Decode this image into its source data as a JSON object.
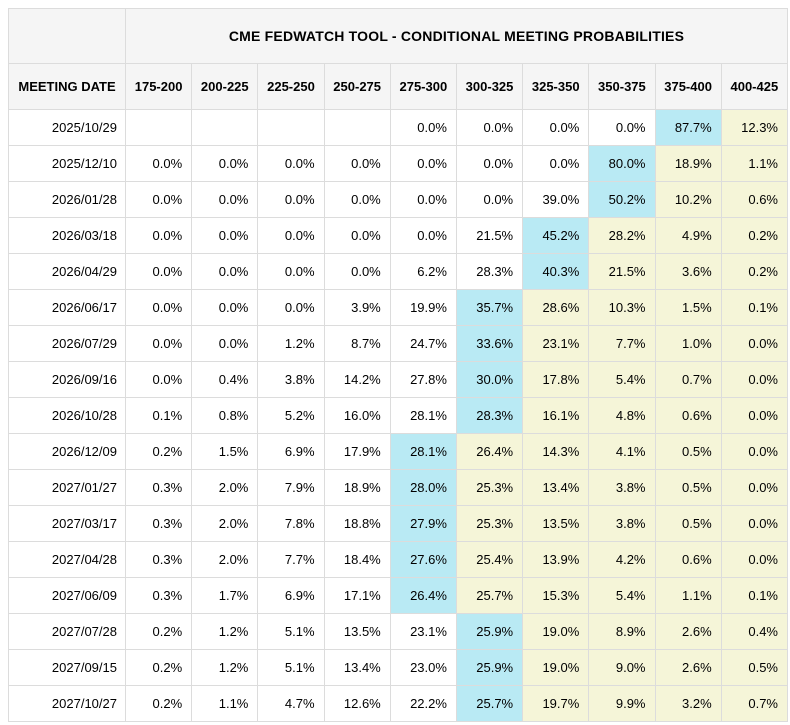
{
  "chart_data": {
    "type": "table",
    "title": "CME FEDWATCH TOOL - CONDITIONAL MEETING PROBABILITIES",
    "row_header": "MEETING DATE",
    "columns": [
      "175-200",
      "200-225",
      "225-250",
      "250-275",
      "275-300",
      "300-325",
      "325-350",
      "350-375",
      "375-400",
      "400-425"
    ],
    "rows": [
      {
        "date": "2025/10/29",
        "values": [
          "",
          "",
          "",
          "",
          "0.0%",
          "0.0%",
          "0.0%",
          "0.0%",
          "87.7%",
          "12.3%"
        ],
        "max_col_index": 8
      },
      {
        "date": "2025/12/10",
        "values": [
          "0.0%",
          "0.0%",
          "0.0%",
          "0.0%",
          "0.0%",
          "0.0%",
          "0.0%",
          "80.0%",
          "18.9%",
          "1.1%"
        ],
        "max_col_index": 7
      },
      {
        "date": "2026/01/28",
        "values": [
          "0.0%",
          "0.0%",
          "0.0%",
          "0.0%",
          "0.0%",
          "0.0%",
          "39.0%",
          "50.2%",
          "10.2%",
          "0.6%"
        ],
        "max_col_index": 7
      },
      {
        "date": "2026/03/18",
        "values": [
          "0.0%",
          "0.0%",
          "0.0%",
          "0.0%",
          "0.0%",
          "21.5%",
          "45.2%",
          "28.2%",
          "4.9%",
          "0.2%"
        ],
        "max_col_index": 6
      },
      {
        "date": "2026/04/29",
        "values": [
          "0.0%",
          "0.0%",
          "0.0%",
          "0.0%",
          "6.2%",
          "28.3%",
          "40.3%",
          "21.5%",
          "3.6%",
          "0.2%"
        ],
        "max_col_index": 6
      },
      {
        "date": "2026/06/17",
        "values": [
          "0.0%",
          "0.0%",
          "0.0%",
          "3.9%",
          "19.9%",
          "35.7%",
          "28.6%",
          "10.3%",
          "1.5%",
          "0.1%"
        ],
        "max_col_index": 5
      },
      {
        "date": "2026/07/29",
        "values": [
          "0.0%",
          "0.0%",
          "1.2%",
          "8.7%",
          "24.7%",
          "33.6%",
          "23.1%",
          "7.7%",
          "1.0%",
          "0.0%"
        ],
        "max_col_index": 5
      },
      {
        "date": "2026/09/16",
        "values": [
          "0.0%",
          "0.4%",
          "3.8%",
          "14.2%",
          "27.8%",
          "30.0%",
          "17.8%",
          "5.4%",
          "0.7%",
          "0.0%"
        ],
        "max_col_index": 5
      },
      {
        "date": "2026/10/28",
        "values": [
          "0.1%",
          "0.8%",
          "5.2%",
          "16.0%",
          "28.1%",
          "28.3%",
          "16.1%",
          "4.8%",
          "0.6%",
          "0.0%"
        ],
        "max_col_index": 5
      },
      {
        "date": "2026/12/09",
        "values": [
          "0.2%",
          "1.5%",
          "6.9%",
          "17.9%",
          "28.1%",
          "26.4%",
          "14.3%",
          "4.1%",
          "0.5%",
          "0.0%"
        ],
        "max_col_index": 4
      },
      {
        "date": "2027/01/27",
        "values": [
          "0.3%",
          "2.0%",
          "7.9%",
          "18.9%",
          "28.0%",
          "25.3%",
          "13.4%",
          "3.8%",
          "0.5%",
          "0.0%"
        ],
        "max_col_index": 4
      },
      {
        "date": "2027/03/17",
        "values": [
          "0.3%",
          "2.0%",
          "7.8%",
          "18.8%",
          "27.9%",
          "25.3%",
          "13.5%",
          "3.8%",
          "0.5%",
          "0.0%"
        ],
        "max_col_index": 4
      },
      {
        "date": "2027/04/28",
        "values": [
          "0.3%",
          "2.0%",
          "7.7%",
          "18.4%",
          "27.6%",
          "25.4%",
          "13.9%",
          "4.2%",
          "0.6%",
          "0.0%"
        ],
        "max_col_index": 4
      },
      {
        "date": "2027/06/09",
        "values": [
          "0.3%",
          "1.7%",
          "6.9%",
          "17.1%",
          "26.4%",
          "25.7%",
          "15.3%",
          "5.4%",
          "1.1%",
          "0.1%"
        ],
        "max_col_index": 4
      },
      {
        "date": "2027/07/28",
        "values": [
          "0.2%",
          "1.2%",
          "5.1%",
          "13.5%",
          "23.1%",
          "25.9%",
          "19.0%",
          "8.9%",
          "2.6%",
          "0.4%"
        ],
        "max_col_index": 5
      },
      {
        "date": "2027/09/15",
        "values": [
          "0.2%",
          "1.2%",
          "5.1%",
          "13.4%",
          "23.0%",
          "25.9%",
          "19.0%",
          "9.0%",
          "2.6%",
          "0.5%"
        ],
        "max_col_index": 5
      },
      {
        "date": "2027/10/27",
        "values": [
          "0.2%",
          "1.1%",
          "4.7%",
          "12.6%",
          "22.2%",
          "25.7%",
          "19.7%",
          "9.9%",
          "3.2%",
          "0.7%"
        ],
        "max_col_index": 5
      }
    ],
    "colors": {
      "highlight_blue": "#b9eaf4",
      "tail_yellow": "#f5f5d8",
      "header_bg": "#f5f5f5",
      "grid": "#dcdcdc",
      "text": "#000000"
    },
    "layout": {
      "highlight_rule": "max probability cell per row is blue; cells to the right of it are yellow",
      "grid": true
    }
  }
}
